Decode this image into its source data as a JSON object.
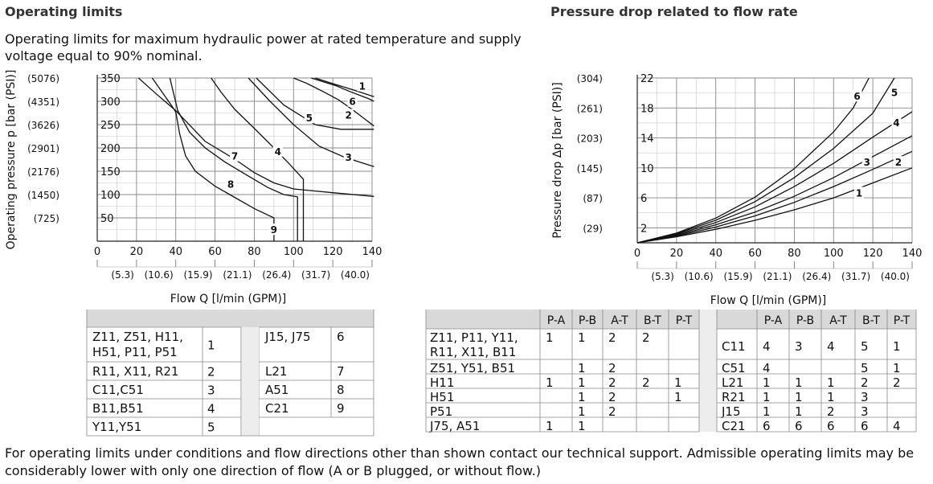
{
  "left": {
    "heading": "Operating limits",
    "description": "Operating limits for maximum hydraulic power at rated temperature and supply voltage equal to 90% nominal.",
    "legend_table": [
      [
        "Z11, Z51, H11,\nH51, P11, P51",
        "1",
        "J15, J75",
        "6"
      ],
      [
        "R11, X11, R21",
        "2",
        "L21",
        "7"
      ],
      [
        "C11,C51",
        "3",
        "A51",
        "8"
      ],
      [
        "B11,B51",
        "4",
        "C21",
        "9"
      ],
      [
        "Y11,Y51",
        "5",
        "",
        ""
      ]
    ]
  },
  "right": {
    "heading": "Pressure drop related to flow rate",
    "flow_headers": [
      "P-A",
      "P-B",
      "A-T",
      "B-T",
      "P-T"
    ],
    "table_left": [
      [
        "Z11, P11, Y11,\nR11, X11, B11",
        "1",
        "1",
        "2",
        "2",
        ""
      ],
      [
        "Z51, Y51, B51",
        "",
        "1",
        "2",
        "",
        ""
      ],
      [
        "H11",
        "1",
        "1",
        "2",
        "2",
        "1"
      ],
      [
        "H51",
        "",
        "1",
        "2",
        "",
        "1"
      ],
      [
        "P51",
        "",
        "1",
        "2",
        "",
        ""
      ],
      [
        "J75, A51",
        "1",
        "1",
        "",
        "",
        ""
      ]
    ],
    "table_right": [
      [
        "C11",
        "4",
        "3",
        "4",
        "5",
        "1"
      ],
      [
        "C51",
        "4",
        "",
        "",
        "5",
        "1"
      ],
      [
        "L21",
        "1",
        "1",
        "1",
        "2",
        "2"
      ],
      [
        "R21",
        "1",
        "1",
        "1",
        "3",
        ""
      ],
      [
        "J15",
        "1",
        "1",
        "2",
        "3",
        ""
      ],
      [
        "C21",
        "6",
        "6",
        "6",
        "6",
        "4"
      ]
    ]
  },
  "footer_note": "For operating limits under conditions and flow directions other than shown contact our technical support. Admissible operating limits may be considerably lower with only one direction of flow (A or B plugged, or without flow.)",
  "chart_data": [
    {
      "type": "line",
      "title": "Operating limits",
      "xlabel": "Flow Q [l/min (GPM)]",
      "ylabel": "Operating pressure p [bar (PSI)]",
      "xlim": [
        0,
        140
      ],
      "ylim": [
        0,
        350
      ],
      "x_ticks": [
        "0",
        "20",
        "40",
        "60",
        "80",
        "100",
        "120",
        "140"
      ],
      "x_ticks_secondary": [
        "(5.3)",
        "(10.6)",
        "(15.9)",
        "(21.1)",
        "(26.4)",
        "(31.7)",
        "(40.0)"
      ],
      "y_ticks": [
        "50",
        "100",
        "150",
        "200",
        "250",
        "300",
        "350"
      ],
      "y_ticks_secondary": [
        "(725)",
        "(1450)",
        "(2176)",
        "(2901)",
        "(3626)",
        "(4351)",
        "(5076)"
      ],
      "grid": true,
      "series": [
        {
          "name": "1",
          "x": [
            109,
            115,
            122,
            128,
            133,
            138,
            141
          ],
          "y": [
            350,
            342,
            333,
            322,
            314,
            306,
            300
          ]
        },
        {
          "name": "2",
          "x": [
            100,
            107,
            115,
            123,
            130,
            136,
            141
          ],
          "y": [
            350,
            338,
            321,
            303,
            282,
            263,
            247
          ]
        },
        {
          "name": "3",
          "x": [
            77,
            88,
            100,
            113,
            126,
            141
          ],
          "y": [
            350,
            300,
            250,
            204,
            180,
            160
          ]
        },
        {
          "name": "4",
          "x": [
            58,
            63,
            70,
            80,
            90,
            98,
            105,
            105
          ],
          "y": [
            350,
            320,
            283,
            242,
            200,
            165,
            133,
            0
          ]
        },
        {
          "name": "5",
          "x": [
            81,
            95,
            111,
            124,
            141
          ],
          "y": [
            350,
            292,
            250,
            240,
            240
          ]
        },
        {
          "name": "6",
          "x": [
            111,
            120,
            130,
            141
          ],
          "y": [
            350,
            338,
            325,
            310
          ]
        },
        {
          "name": "7",
          "x": [
            37,
            41,
            47,
            55,
            65,
            76,
            87,
            95,
            102,
            102
          ],
          "y": [
            350,
            280,
            234,
            200,
            170,
            142,
            115,
            100,
            95,
            0
          ]
        },
        {
          "name": "8",
          "x": [
            21,
            30,
            40,
            55,
            70,
            80,
            90,
            100,
            120,
            141
          ],
          "y": [
            350,
            316,
            280,
            214,
            176,
            147,
            125,
            112,
            104,
            96
          ]
        },
        {
          "name": "9",
          "x": [
            28,
            33,
            38,
            40,
            42,
            45,
            50,
            60,
            70,
            80,
            90,
            90
          ],
          "y": [
            350,
            320,
            290,
            277,
            230,
            183,
            150,
            118,
            94,
            70,
            50,
            0
          ]
        }
      ]
    },
    {
      "type": "line",
      "title": "Pressure drop related to flow rate",
      "xlabel": "Flow Q [l/min (GPM)]",
      "ylabel": "Pressure drop Δp [bar (PSI)]",
      "xlim": [
        0,
        140
      ],
      "ylim": [
        0,
        22
      ],
      "x_ticks": [
        "0",
        "20",
        "40",
        "60",
        "80",
        "100",
        "120",
        "140"
      ],
      "x_ticks_secondary": [
        "(5.3)",
        "(10.6)",
        "(15.9)",
        "(21.1)",
        "(26.4)",
        "(31.7)",
        "(40.0)"
      ],
      "y_ticks": [
        "2",
        "6",
        "10",
        "14",
        "18",
        "22"
      ],
      "y_ticks_secondary": [
        "(29)",
        "(87)",
        "(145)",
        "(203)",
        "(261)",
        "(304)"
      ],
      "grid": true,
      "series": [
        {
          "name": "1",
          "x": [
            0,
            20,
            40,
            60,
            80,
            100,
            120,
            140
          ],
          "y": [
            0,
            0.8,
            1.8,
            3.0,
            4.4,
            6.0,
            8.0,
            10.0
          ]
        },
        {
          "name": "2",
          "x": [
            0,
            20,
            40,
            60,
            80,
            100,
            120,
            140
          ],
          "y": [
            0,
            0.9,
            2.1,
            3.6,
            5.4,
            7.5,
            9.8,
            12.2
          ]
        },
        {
          "name": "3",
          "x": [
            0,
            20,
            40,
            60,
            80,
            100,
            120,
            140
          ],
          "y": [
            0,
            1.0,
            2.4,
            4.1,
            6.2,
            8.7,
            11.5,
            14.3
          ]
        },
        {
          "name": "4",
          "x": [
            0,
            20,
            40,
            60,
            80,
            100,
            120,
            140
          ],
          "y": [
            0,
            1.1,
            2.7,
            4.8,
            7.5,
            10.6,
            14.1,
            17.5
          ]
        },
        {
          "name": "5",
          "x": [
            0,
            20,
            40,
            60,
            80,
            100,
            120,
            131
          ],
          "y": [
            0,
            1.2,
            3.0,
            5.5,
            8.7,
            12.6,
            17.3,
            22.0
          ]
        },
        {
          "name": "6",
          "x": [
            0,
            20,
            40,
            60,
            80,
            100,
            110,
            118
          ],
          "y": [
            0,
            1.3,
            3.3,
            6.1,
            9.9,
            14.8,
            18.0,
            22.0
          ]
        }
      ]
    }
  ]
}
